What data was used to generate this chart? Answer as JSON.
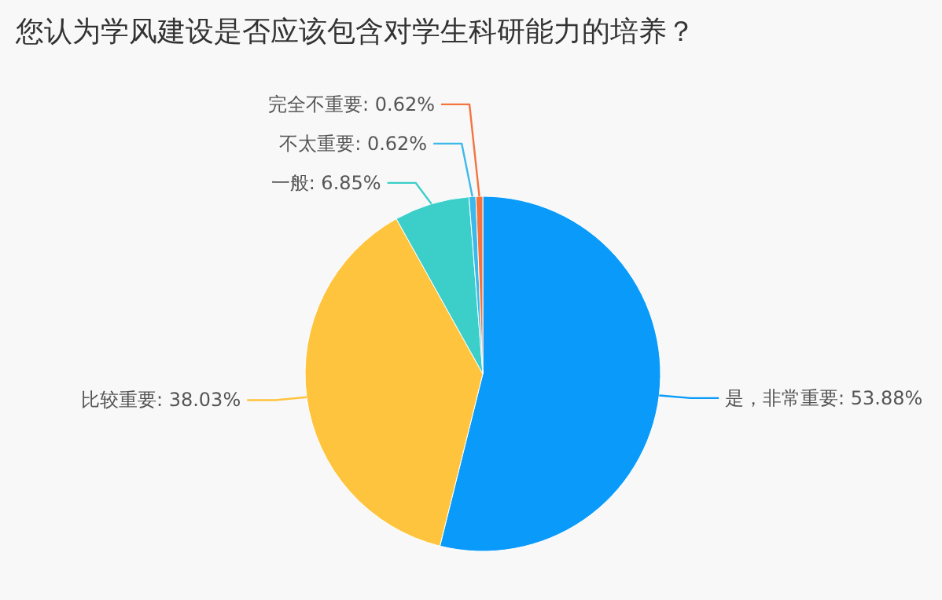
{
  "chart_data": {
    "type": "pie",
    "title": "您认为学风建设是否应该包含对学生科研能力的培养？",
    "categories": [
      "是，非常重要",
      "比较重要",
      "一般",
      "不太重要",
      "完全不重要"
    ],
    "values": [
      53.88,
      38.03,
      6.85,
      0.62,
      0.62
    ],
    "value_labels": [
      "53.88%",
      "38.03%",
      "6.85%",
      "0.62%",
      "0.62%"
    ],
    "colors": [
      "#0a9bfa",
      "#ffc43d",
      "#3ccfc9",
      "#3bb9ea",
      "#f5733f"
    ],
    "legend": false
  }
}
